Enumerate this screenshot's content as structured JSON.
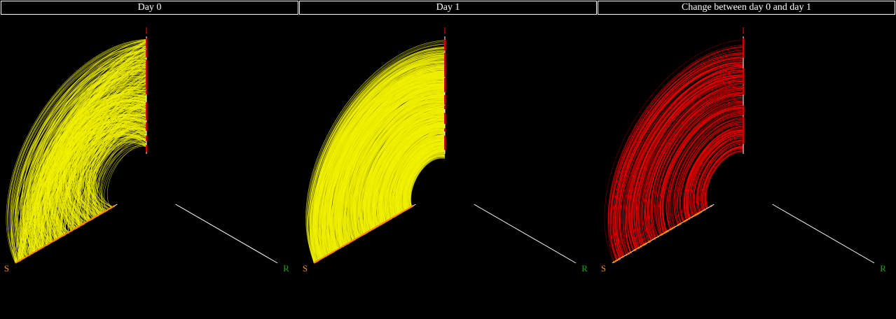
{
  "panels": [
    {
      "title": "Day 0",
      "mode": "day0"
    },
    {
      "title": "Day 1",
      "mode": "day1"
    },
    {
      "title": "Change between day 0 and day 1",
      "mode": "change"
    }
  ],
  "axes": {
    "i": {
      "label": "I",
      "color": "#d40000"
    },
    "s": {
      "label": "S",
      "color": "#ff8c00"
    },
    "r": {
      "label": "R",
      "color": "#1f9e1f"
    }
  },
  "colors": {
    "edge_day": "#f2f200",
    "edge_change": "#ff0000",
    "axis_line": "#ffffff",
    "background": "#000000"
  }
}
